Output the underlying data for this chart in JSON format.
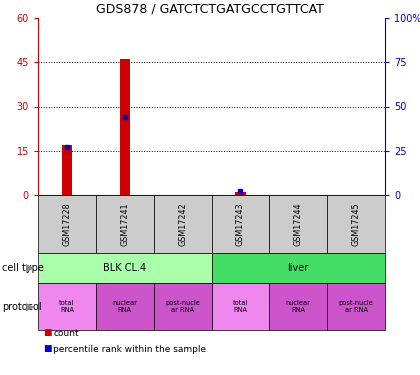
{
  "title": "GDS878 / GATCTCTGATGCCTGTTCAT",
  "samples": [
    "GSM17228",
    "GSM17241",
    "GSM17242",
    "GSM17243",
    "GSM17244",
    "GSM17245"
  ],
  "counts": [
    17,
    46,
    0,
    1,
    0,
    0
  ],
  "percentiles": [
    27,
    44,
    0,
    2,
    0,
    0
  ],
  "ylim_left": [
    0,
    60
  ],
  "ylim_right": [
    0,
    100
  ],
  "yticks_left": [
    0,
    15,
    30,
    45,
    60
  ],
  "yticks_right": [
    0,
    25,
    50,
    75,
    100
  ],
  "bar_color": "#cc0000",
  "dot_color": "#0000cc",
  "cell_types": [
    {
      "label": "BLK CL.4",
      "start": 0,
      "end": 3,
      "color": "#aaffaa"
    },
    {
      "label": "liver",
      "start": 3,
      "end": 6,
      "color": "#44dd66"
    }
  ],
  "protocol_colors": [
    "#ee88ee",
    "#cc55cc",
    "#cc55cc",
    "#ee88ee",
    "#cc55cc",
    "#cc55cc"
  ],
  "protocol_labels": [
    "total\nRNA",
    "nuclear\nRNA",
    "post-nucle\nar RNA",
    "total\nRNA",
    "nuclear\nRNA",
    "post-nucle\nar RNA"
  ],
  "left_axis_color": "#cc0000",
  "right_axis_color": "#0000cc",
  "sample_box_color": "#cccccc",
  "cell_type_label": "cell type",
  "protocol_label": "protocol",
  "legend_count": "count",
  "legend_percentile": "percentile rank within the sample"
}
